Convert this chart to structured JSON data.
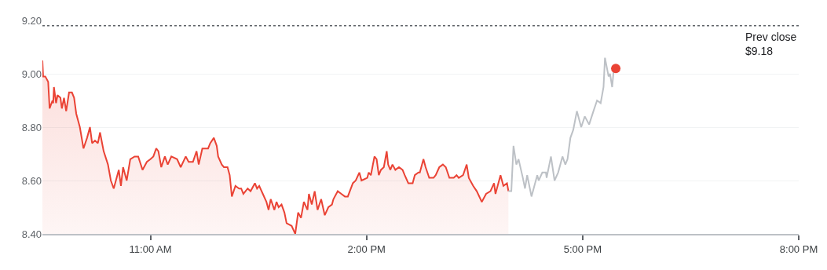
{
  "chart_data": {
    "type": "line",
    "xlim": [
      9.5,
      20
    ],
    "xticks": [
      {
        "value": 11,
        "label": "11:00 AM"
      },
      {
        "value": 14,
        "label": "2:00 PM"
      },
      {
        "value": 17,
        "label": "5:00 PM"
      },
      {
        "value": 20,
        "label": "8:00 PM"
      }
    ],
    "ylim": [
      8.4,
      9.2
    ],
    "yticks": [
      {
        "value": 8.4,
        "label": "8.40"
      },
      {
        "value": 8.6,
        "label": "8.60"
      },
      {
        "value": 8.8,
        "label": "8.80"
      },
      {
        "value": 9.0,
        "label": "9.00"
      },
      {
        "value": 9.2,
        "label": "9.20"
      }
    ],
    "grid": "y",
    "marker": "none",
    "line_style": "solid",
    "ref_lines": [
      {
        "axis": "y",
        "value": 9.18,
        "label": "Prev close\n$9.18",
        "color": "#5f6368",
        "line_style": "dotted"
      }
    ],
    "series": [
      {
        "type": "area",
        "color": "#ea4335",
        "x": [
          9.5,
          9.51,
          9.54,
          9.58,
          9.6,
          9.64,
          9.65,
          9.66,
          9.69,
          9.71,
          9.75,
          9.77,
          9.8,
          9.83,
          9.87,
          9.91,
          9.94,
          9.97,
          10.02,
          10.07,
          10.12,
          10.16,
          10.19,
          10.23,
          10.27,
          10.3,
          10.35,
          10.41,
          10.45,
          10.49,
          10.56,
          10.59,
          10.62,
          10.67,
          10.72,
          10.78,
          10.83,
          10.89,
          10.95,
          11.0,
          11.04,
          11.08,
          11.11,
          11.15,
          11.2,
          11.24,
          11.29,
          11.37,
          11.42,
          11.49,
          11.53,
          11.59,
          11.64,
          11.67,
          11.72,
          11.8,
          11.83,
          11.88,
          11.92,
          11.94,
          11.99,
          12.02,
          12.07,
          12.1,
          12.13,
          12.18,
          12.23,
          12.26,
          12.29,
          12.35,
          12.39,
          12.45,
          12.48,
          12.51,
          12.56,
          12.61,
          12.64,
          12.67,
          12.72,
          12.75,
          12.78,
          12.82,
          12.86,
          12.89,
          12.96,
          13.01,
          13.05,
          13.09,
          13.13,
          13.18,
          13.2,
          13.24,
          13.28,
          13.32,
          13.37,
          13.42,
          13.47,
          13.52,
          13.54,
          13.6,
          13.65,
          13.7,
          13.74,
          13.81,
          13.85,
          13.9,
          13.93,
          14.01,
          14.03,
          14.06,
          14.11,
          14.14,
          14.17,
          14.2,
          14.24,
          14.28,
          14.3,
          14.33,
          14.36,
          14.4,
          14.45,
          14.5,
          14.53,
          14.58,
          14.64,
          14.67,
          14.72,
          14.74,
          14.79,
          14.82,
          14.87,
          14.93,
          14.96,
          15.01,
          15.06,
          15.1,
          15.15,
          15.21,
          15.25,
          15.28,
          15.34,
          15.39,
          15.42,
          15.48,
          15.53,
          15.6,
          15.66,
          15.72,
          15.77,
          15.79,
          15.82,
          15.86,
          15.9,
          15.95,
          15.97
        ],
        "values": [
          9.05,
          8.99,
          8.99,
          8.97,
          8.87,
          8.9,
          8.89,
          8.95,
          8.89,
          8.92,
          8.91,
          8.87,
          8.91,
          8.86,
          8.93,
          8.93,
          8.91,
          8.85,
          8.8,
          8.72,
          8.76,
          8.8,
          8.74,
          8.75,
          8.74,
          8.78,
          8.71,
          8.66,
          8.6,
          8.57,
          8.64,
          8.58,
          8.65,
          8.6,
          8.68,
          8.69,
          8.69,
          8.64,
          8.67,
          8.68,
          8.69,
          8.72,
          8.71,
          8.65,
          8.69,
          8.66,
          8.69,
          8.68,
          8.65,
          8.69,
          8.67,
          8.67,
          8.71,
          8.66,
          8.72,
          8.72,
          8.74,
          8.76,
          8.73,
          8.69,
          8.66,
          8.65,
          8.65,
          8.62,
          8.54,
          8.58,
          8.57,
          8.57,
          8.55,
          8.57,
          8.56,
          8.59,
          8.57,
          8.58,
          8.55,
          8.52,
          8.49,
          8.53,
          8.49,
          8.52,
          8.5,
          8.51,
          8.48,
          8.44,
          8.43,
          8.4,
          8.48,
          8.46,
          8.52,
          8.49,
          8.55,
          8.51,
          8.56,
          8.49,
          8.53,
          8.47,
          8.5,
          8.51,
          8.53,
          8.56,
          8.55,
          8.54,
          8.54,
          8.59,
          8.6,
          8.63,
          8.6,
          8.61,
          8.63,
          8.62,
          8.69,
          8.68,
          8.62,
          8.64,
          8.65,
          8.71,
          8.66,
          8.64,
          8.66,
          8.64,
          8.65,
          8.64,
          8.62,
          8.59,
          8.59,
          8.62,
          8.63,
          8.63,
          8.68,
          8.65,
          8.61,
          8.61,
          8.62,
          8.65,
          8.66,
          8.65,
          8.61,
          8.61,
          8.62,
          8.61,
          8.62,
          8.66,
          8.61,
          8.58,
          8.56,
          8.52,
          8.55,
          8.56,
          8.59,
          8.55,
          8.58,
          8.62,
          8.58,
          8.59,
          8.56
        ]
      },
      {
        "color": "#bdc1c6",
        "x": [
          15.97,
          16.01,
          16.04,
          16.08,
          16.11,
          16.17,
          16.2,
          16.23,
          16.29,
          16.33,
          16.37,
          16.39,
          16.44,
          16.49,
          16.5,
          16.56,
          16.61,
          16.66,
          16.72,
          16.76,
          16.79,
          16.83,
          16.87,
          16.92,
          16.98,
          17.03,
          17.09,
          17.15,
          17.2,
          17.25,
          17.29,
          17.31,
          17.36,
          17.38,
          17.41,
          17.43
        ],
        "values": [
          8.56,
          8.56,
          8.73,
          8.66,
          8.68,
          8.61,
          8.57,
          8.62,
          8.54,
          8.58,
          8.62,
          8.6,
          8.63,
          8.63,
          8.61,
          8.69,
          8.6,
          8.63,
          8.69,
          8.66,
          8.68,
          8.76,
          8.79,
          8.86,
          8.8,
          8.84,
          8.81,
          8.86,
          8.9,
          8.89,
          8.95,
          9.06,
          8.99,
          9.0,
          8.95,
          9.01
        ]
      },
      {
        "type": "scatter",
        "color": "#ea4335",
        "marker": "circle",
        "x": [
          17.46
        ],
        "values": [
          9.02
        ]
      }
    ]
  }
}
